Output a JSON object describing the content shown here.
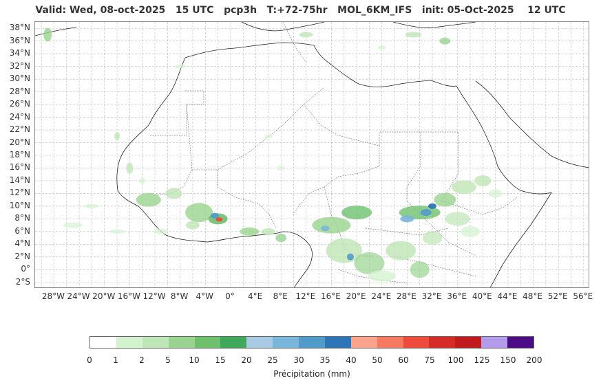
{
  "title": "Valid: Wed, 08-oct-2025   15 UTC   pcp3h   T:+72-75hr   MOL_6KM_IFS   init: 05-Oct-2025    12 UTC",
  "lat_labels": [
    "38°N",
    "36°N",
    "34°N",
    "32°N",
    "30°N",
    "28°N",
    "26°N",
    "24°N",
    "22°N",
    "20°N",
    "18°N",
    "16°N",
    "14°N",
    "12°N",
    "10°N",
    "8°N",
    "6°N",
    "4°N",
    "2°N",
    "0°",
    "2°S"
  ],
  "lon_labels": [
    "28°W",
    "24°W",
    "20°W",
    "16°W",
    "12°W",
    "8°W",
    "4°W",
    "0°",
    "4°E",
    "8°E",
    "12°E",
    "16°E",
    "20°E",
    "24°E",
    "28°E",
    "32°E",
    "36°E",
    "40°E",
    "44°E",
    "48°E",
    "52°E",
    "56°E"
  ],
  "colorbar": {
    "ticks": [
      "0",
      "1",
      "2",
      "5",
      "10",
      "15",
      "20",
      "25",
      "30",
      "35",
      "40",
      "50",
      "60",
      "75",
      "100",
      "125",
      "150",
      "200"
    ],
    "colors": [
      "#ffffff",
      "#d4f2d0",
      "#bfe6b6",
      "#98d48f",
      "#6ec06d",
      "#40a85a",
      "#a8cbe3",
      "#7ab5da",
      "#519bcb",
      "#2d75b7",
      "#fba38c",
      "#f67a5f",
      "#ee4b3c",
      "#d72b27",
      "#c01a1d",
      "#b39ceb",
      "#4b0c85"
    ],
    "label": "Précipitation (mm)"
  },
  "map": {
    "projection": "plate-carree",
    "lon_range": [
      -31,
      57
    ],
    "lat_range": [
      -3,
      39
    ],
    "gridlines": true,
    "precip_areas": [
      {
        "region": "West Africa coast",
        "level": "1-5 mm"
      },
      {
        "region": "Central Africa",
        "level": "1-15 mm"
      },
      {
        "region": "Nigeria / Ghana",
        "level": "up to 60 mm"
      },
      {
        "region": "South Sudan / Sudan",
        "level": "up to 35 mm"
      },
      {
        "region": "Ethiopian highlands",
        "level": "1-10 mm"
      }
    ]
  }
}
